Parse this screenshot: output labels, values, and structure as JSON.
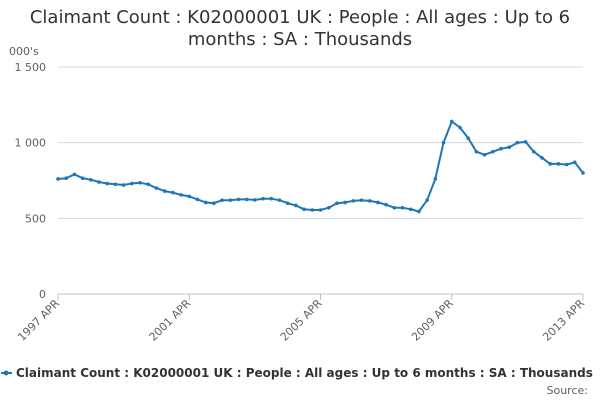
{
  "chart_data": {
    "type": "line",
    "title": "Claimant Count : K02000001 UK : People : All ages : Up to 6 months : SA : Thousands",
    "title_lines": [
      "Claimant Count : K02000001 UK : People : All ages : Up to 6",
      "months : SA : Thousands"
    ],
    "ylabel": "000's",
    "ylim": [
      0,
      1500
    ],
    "yticks": [
      0,
      500,
      1000,
      1500
    ],
    "ytick_labels": [
      "0",
      "500",
      "1 000",
      "1 500"
    ],
    "xlim": [
      "1997-04",
      "2013-04"
    ],
    "xticks": [
      "1997-04",
      "2001-04",
      "2005-04",
      "2009-04",
      "2013-04"
    ],
    "xtick_labels": [
      "1997 APR",
      "2001 APR",
      "2005 APR",
      "2009 APR",
      "2013 APR"
    ],
    "grid": "horizontal",
    "legend_position": "bottom",
    "source_label": "Source:",
    "series_color": "#1f77b4",
    "gridline_color": "#d8d8d8",
    "series": [
      {
        "name": "Claimant Count : K02000001 UK : People : All ages : Up to 6 months : SA : Thousands",
        "x": [
          "1997-04",
          "1997-07",
          "1997-10",
          "1998-01",
          "1998-04",
          "1998-07",
          "1998-10",
          "1999-01",
          "1999-04",
          "1999-07",
          "1999-10",
          "2000-01",
          "2000-04",
          "2000-07",
          "2000-10",
          "2001-01",
          "2001-04",
          "2001-07",
          "2001-10",
          "2002-01",
          "2002-04",
          "2002-07",
          "2002-10",
          "2003-01",
          "2003-04",
          "2003-07",
          "2003-10",
          "2004-01",
          "2004-04",
          "2004-07",
          "2004-10",
          "2005-01",
          "2005-04",
          "2005-07",
          "2005-10",
          "2006-01",
          "2006-04",
          "2006-07",
          "2006-10",
          "2007-01",
          "2007-04",
          "2007-07",
          "2007-10",
          "2008-01",
          "2008-04",
          "2008-07",
          "2008-10",
          "2009-01",
          "2009-04",
          "2009-07",
          "2009-10",
          "2010-01",
          "2010-04",
          "2010-07",
          "2010-10",
          "2011-01",
          "2011-04",
          "2011-07",
          "2011-10",
          "2012-01",
          "2012-04",
          "2012-07",
          "2012-10",
          "2013-01",
          "2013-04"
        ],
        "values": [
          760,
          765,
          790,
          765,
          755,
          740,
          730,
          725,
          720,
          730,
          735,
          725,
          700,
          680,
          670,
          655,
          645,
          625,
          605,
          600,
          620,
          620,
          625,
          625,
          622,
          630,
          630,
          620,
          600,
          585,
          560,
          555,
          555,
          570,
          600,
          605,
          615,
          620,
          615,
          605,
          590,
          570,
          570,
          560,
          545,
          620,
          760,
          1000,
          1140,
          1100,
          1030,
          940,
          920,
          940,
          960,
          970,
          1000,
          1005,
          940,
          900,
          860,
          860,
          855,
          870,
          800
        ]
      }
    ]
  }
}
